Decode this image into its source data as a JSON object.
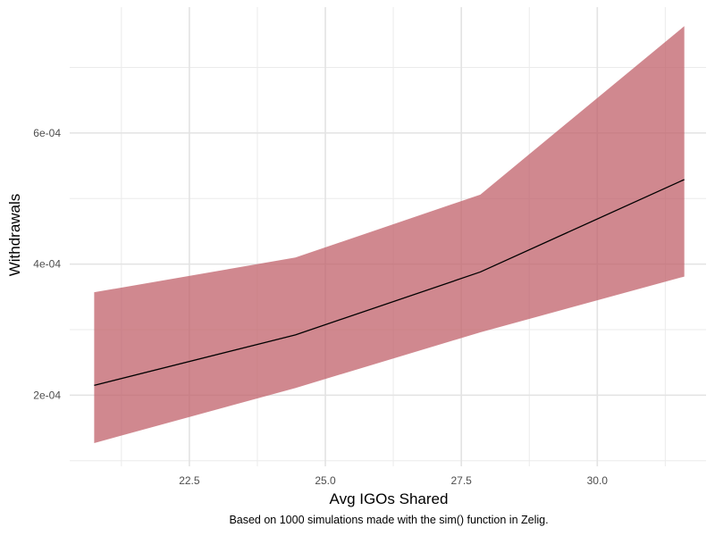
{
  "chart_data": {
    "type": "line",
    "xlabel": "Avg IGOs Shared",
    "ylabel": "Withdrawals",
    "caption": "Based on 1000 simulations made with the sim() function in Zelig.",
    "xlim": [
      20.3,
      32.0
    ],
    "ylim": [
      9.15e-05,
      0.000792
    ],
    "x_ticks": [
      22.5,
      25.0,
      27.5,
      30.0
    ],
    "x_tick_labels": [
      "22.5",
      "25.0",
      "27.5",
      "30.0"
    ],
    "y_ticks": [
      0.0002,
      0.0004,
      0.0006
    ],
    "y_tick_labels": [
      "2e-04",
      "4e-04",
      "6e-04"
    ],
    "grid": true,
    "series": [
      {
        "type": "line",
        "x": [
          20.75,
          24.45,
          27.85,
          31.6
        ],
        "values": [
          0.000215,
          0.000292,
          0.000388,
          0.000529
        ],
        "color": "#000000"
      },
      {
        "type": "ribbon",
        "x": [
          20.75,
          24.45,
          27.85,
          31.6
        ],
        "lower": [
          0.000127,
          0.000211,
          0.000296,
          0.000381
        ],
        "upper": [
          0.000357,
          0.00041,
          0.000506,
          0.000763
        ],
        "color": "#c0606a"
      }
    ]
  }
}
